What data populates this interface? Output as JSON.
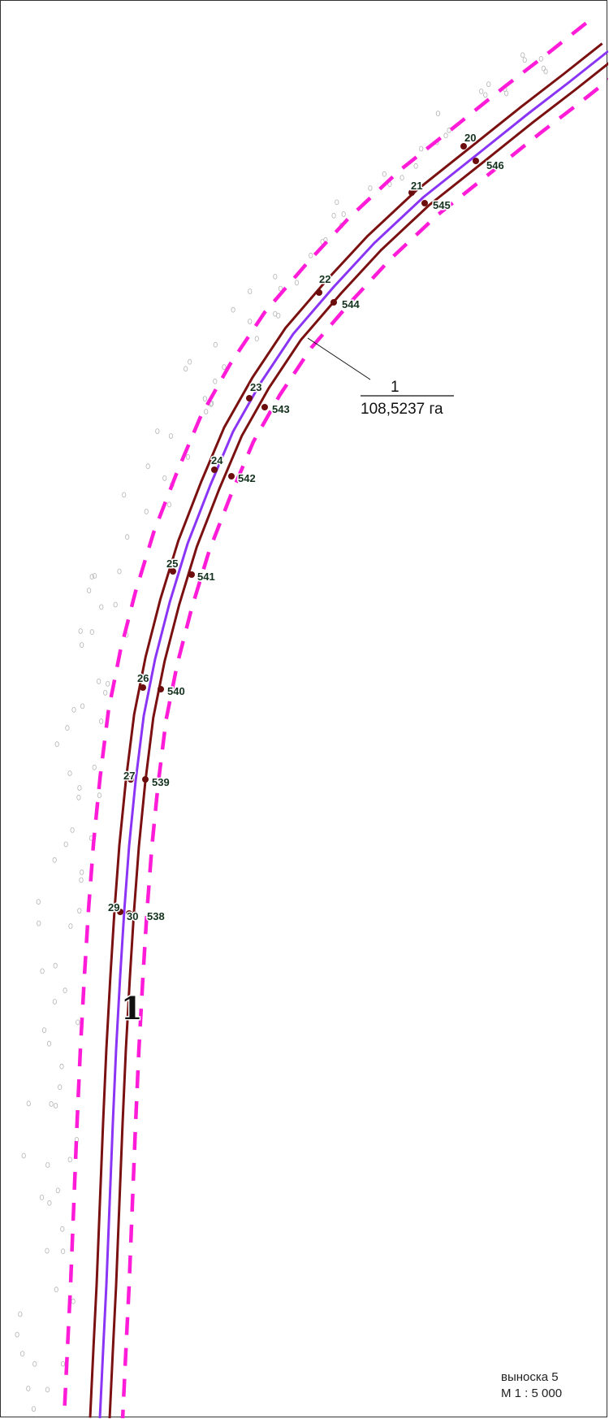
{
  "colors": {
    "boundary": "#7a1010",
    "centerline": "#8a35f5",
    "buffer_dash": "#ff1cd8",
    "point": "#6b0d0d",
    "relief": "#b4b4b4"
  },
  "parcel": {
    "number": "1",
    "area": "108,5237 га",
    "label_number": "1"
  },
  "outer_points": [
    "20",
    "21",
    "22",
    "23",
    "24",
    "25",
    "26",
    "27",
    "29"
  ],
  "inner_points": [
    "546",
    "545",
    "544",
    "543",
    "542",
    "541",
    "540",
    "539",
    "538"
  ],
  "center_point": "30",
  "caption": {
    "callout": "выноска 5",
    "scale": "М 1 : 5 000"
  }
}
